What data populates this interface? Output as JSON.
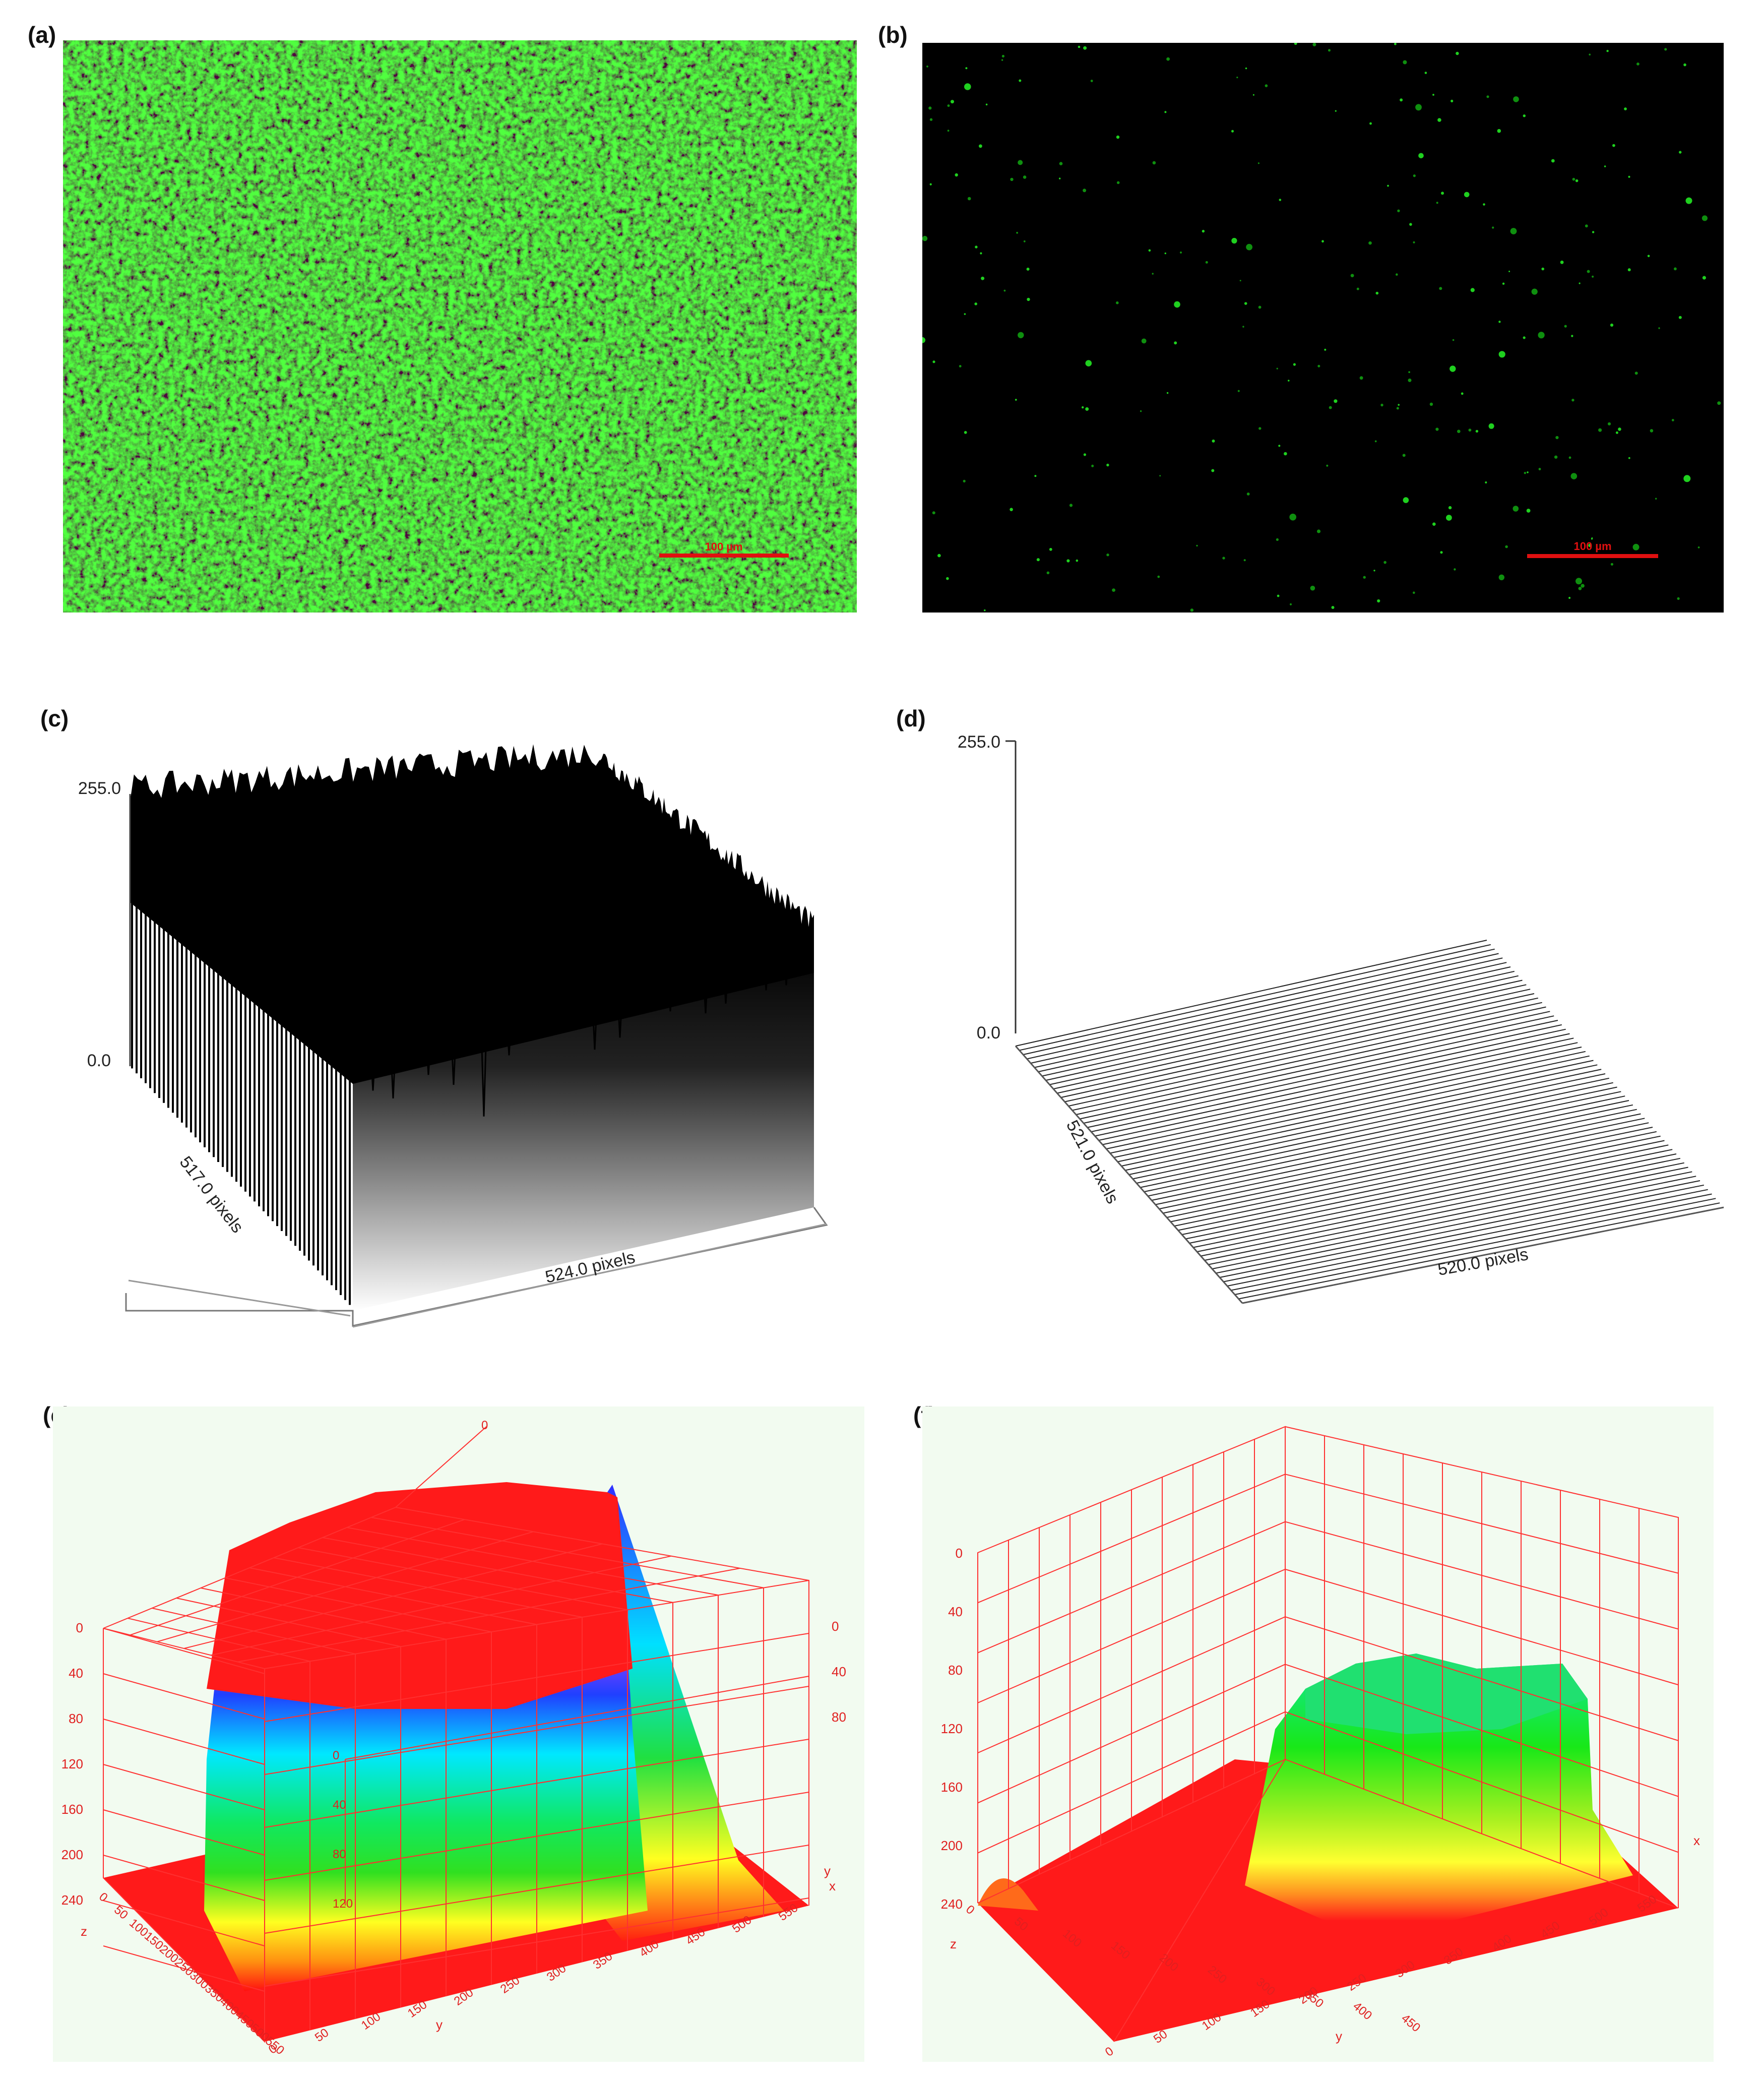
{
  "panels": {
    "a": {
      "label": "(a)",
      "scale_bar": "100 µm"
    },
    "b": {
      "label": "(b)",
      "scale_bar": "100 µm"
    },
    "c": {
      "label": "(c)",
      "z_max": "255.0",
      "z_min": "0.0",
      "axis_left": "517.0 pixels",
      "axis_right": "524.0 pixels"
    },
    "d": {
      "label": "(d)",
      "z_max": "255.0",
      "z_min": "0.0",
      "axis_left": "521.0 pixels",
      "axis_right": "520.0 pixels"
    },
    "e": {
      "label": "(e)",
      "z_ticks": [
        "0",
        "40",
        "80",
        "120",
        "160",
        "200",
        "240"
      ],
      "right_z_ticks": [
        "0",
        "40",
        "80"
      ],
      "inner_ticks": [
        "0",
        "40",
        "80",
        "120"
      ],
      "x_ticks": [
        "0",
        "50",
        "100",
        "150",
        "200",
        "250",
        "300",
        "350",
        "400",
        "450",
        "500",
        "550"
      ],
      "y_ticks": [
        "0",
        "50",
        "100",
        "150",
        "200",
        "250",
        "300",
        "350",
        "400",
        "450",
        "500",
        "550"
      ],
      "axis_x": "x",
      "axis_y": "y",
      "axis_z": "z",
      "axis_y2": "y"
    },
    "f": {
      "label": "(f)",
      "z_ticks": [
        "0",
        "40",
        "80",
        "120",
        "160",
        "200",
        "240"
      ],
      "x_ticks": [
        "0",
        "50",
        "100",
        "150",
        "200",
        "250",
        "300",
        "350",
        "400",
        "450"
      ],
      "y_ticks": [
        "0",
        "50",
        "100",
        "150",
        "200",
        "250",
        "300",
        "350",
        "400",
        "450",
        "500",
        "550"
      ],
      "axis_x": "x",
      "axis_y": "y",
      "axis_z": "z"
    }
  },
  "colors": {
    "fluor_green": "#2bd62b",
    "scale_red": "#e01010",
    "grid_red": "#ff3030",
    "plot_bg": "#f2fbf0"
  }
}
